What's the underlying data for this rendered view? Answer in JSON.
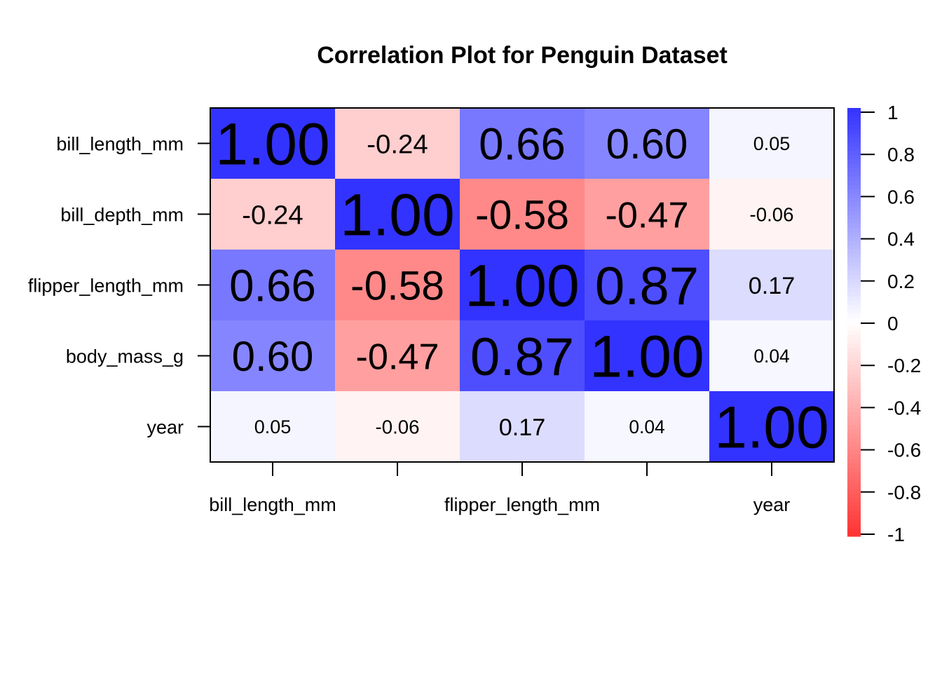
{
  "chart_data": {
    "type": "heatmap",
    "title": "Correlation Plot for Penguin Dataset",
    "variables": [
      "bill_length_mm",
      "bill_depth_mm",
      "flipper_length_mm",
      "body_mass_g",
      "year"
    ],
    "x_tick_labels": [
      "bill_length_mm",
      "",
      "flipper_length_mm",
      "",
      "year"
    ],
    "matrix": [
      [
        1.0,
        -0.24,
        0.66,
        0.6,
        0.05
      ],
      [
        -0.24,
        1.0,
        -0.58,
        -0.47,
        -0.06
      ],
      [
        0.66,
        -0.58,
        1.0,
        0.87,
        0.17
      ],
      [
        0.6,
        -0.47,
        0.87,
        1.0,
        0.04
      ],
      [
        0.05,
        -0.06,
        0.17,
        0.04,
        1.0
      ]
    ],
    "cell_labels": [
      [
        "1.00",
        "-0.24",
        "0.66",
        "0.60",
        "0.05"
      ],
      [
        "-0.24",
        "1.00",
        "-0.58",
        "-0.47",
        "-0.06"
      ],
      [
        "0.66",
        "-0.58",
        "1.00",
        "0.87",
        "0.17"
      ],
      [
        "0.60",
        "-0.47",
        "0.87",
        "1.00",
        "0.04"
      ],
      [
        "0.05",
        "-0.06",
        "0.17",
        "0.04",
        "1.00"
      ]
    ],
    "color_scale": {
      "min": -1,
      "max": 1,
      "low_color": "#FF3333",
      "mid_color": "#FFFFFF",
      "high_color": "#3333FF",
      "ticks": [
        "1",
        "0.8",
        "0.6",
        "0.4",
        "0.2",
        "0",
        "-0.2",
        "-0.4",
        "-0.6",
        "-0.8",
        "-1"
      ]
    },
    "legend_position": "right",
    "grid": false
  }
}
